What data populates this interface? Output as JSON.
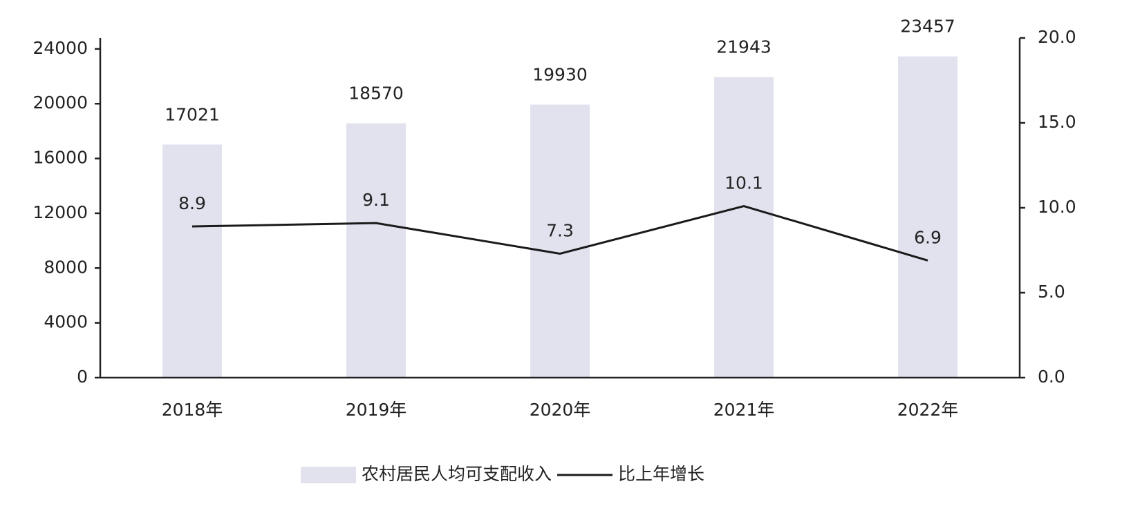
{
  "chart_data": {
    "type": "bar",
    "categories": [
      "2018年",
      "2019年",
      "2020年",
      "2021年",
      "2022年"
    ],
    "series": [
      {
        "name": "农村居民人均可支配收入",
        "type": "bar",
        "color": "#e2e2ee",
        "values": [
          17021,
          18570,
          19930,
          21943,
          23457
        ]
      },
      {
        "name": "比上年增长",
        "type": "line",
        "color": "#1a1a1a",
        "axis": "y2",
        "values": [
          8.9,
          9.1,
          7.3,
          10.1,
          6.9
        ]
      }
    ],
    "ylim": [
      0,
      24800
    ],
    "yticks": [
      0,
      4000,
      8000,
      12000,
      16000,
      20000,
      24000
    ],
    "y2lim": [
      0,
      20
    ],
    "y2ticks": [
      {
        "value": 0,
        "label": "0.0"
      },
      {
        "value": 5,
        "label": "5.0"
      },
      {
        "value": 10,
        "label": "10.0"
      },
      {
        "value": 15,
        "label": "15.0"
      },
      {
        "value": 20,
        "label": "20.0"
      }
    ],
    "legend": "bottom"
  }
}
